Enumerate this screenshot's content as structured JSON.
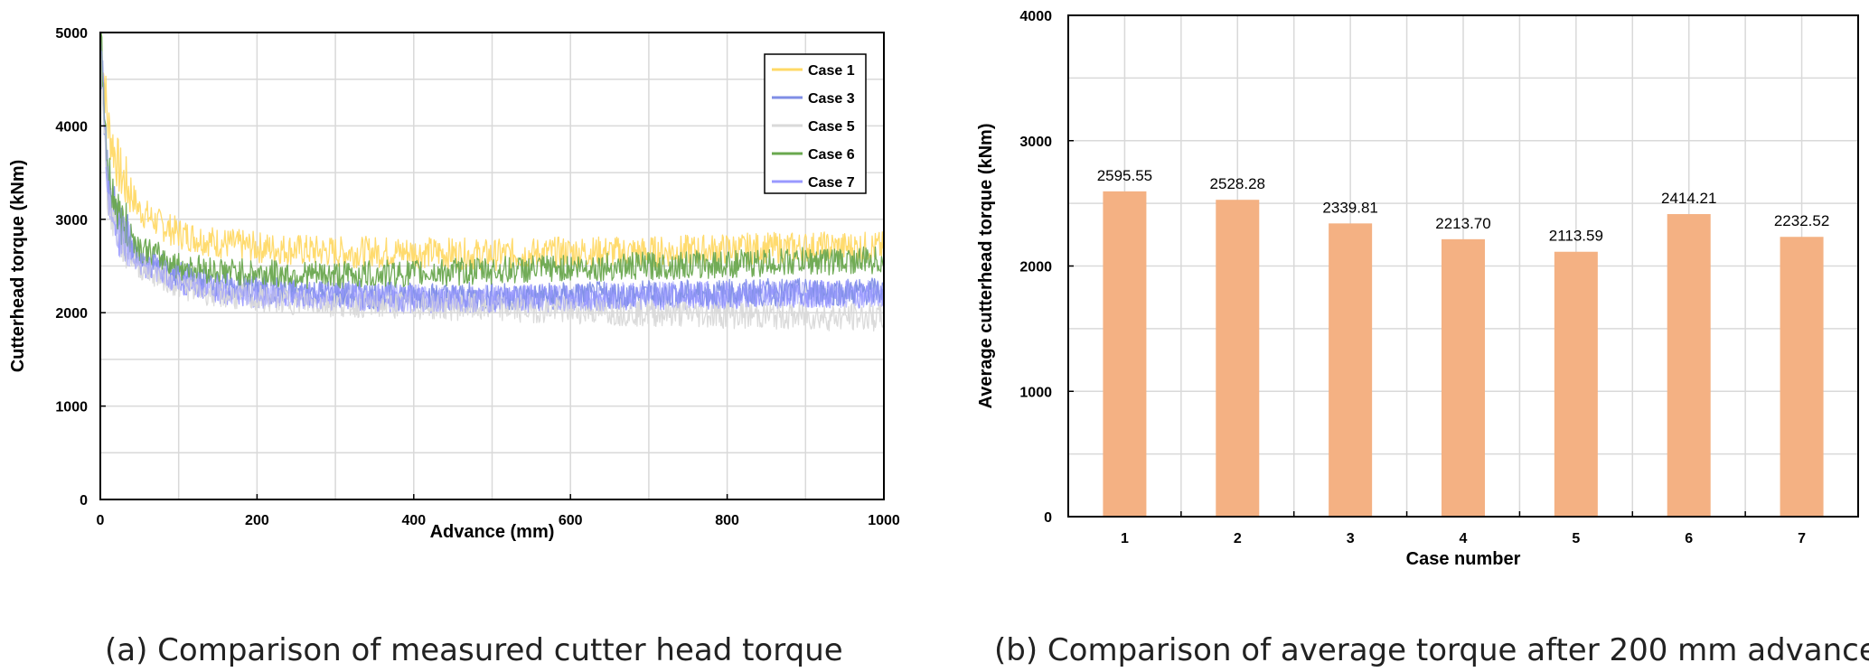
{
  "chart_data": [
    {
      "type": "line",
      "title": "",
      "caption": "(a) Comparison of measured cutter head torque",
      "xlabel": "Advance (mm)",
      "ylabel": "Cutterhead torque (kNm)",
      "xlim": [
        0,
        1000
      ],
      "ylim": [
        0,
        5000
      ],
      "xticks": [
        "0",
        "200",
        "400",
        "600",
        "800",
        "1000"
      ],
      "yticks": [
        "0",
        "1000",
        "2000",
        "3000",
        "4000",
        "5000"
      ],
      "grid": true,
      "legend_position": "top-right",
      "series": [
        {
          "name": "Case 1",
          "color": "#ffd966",
          "x": [
            0,
            10,
            25,
            50,
            75,
            100,
            150,
            200,
            300,
            400,
            500,
            600,
            700,
            800,
            900,
            1000
          ],
          "values": [
            5000,
            4000,
            3500,
            3100,
            2950,
            2850,
            2750,
            2700,
            2650,
            2650,
            2620,
            2650,
            2650,
            2680,
            2700,
            2700
          ]
        },
        {
          "name": "Case 3",
          "color": "#7f8ee6",
          "x": [
            0,
            10,
            25,
            50,
            75,
            100,
            150,
            200,
            300,
            400,
            500,
            600,
            700,
            800,
            900,
            1000
          ],
          "values": [
            5000,
            3300,
            2900,
            2600,
            2500,
            2400,
            2300,
            2250,
            2200,
            2180,
            2170,
            2180,
            2200,
            2210,
            2220,
            2230
          ]
        },
        {
          "name": "Case 5",
          "color": "#d9d9d9",
          "x": [
            0,
            10,
            25,
            50,
            75,
            100,
            150,
            200,
            300,
            400,
            500,
            600,
            700,
            800,
            900,
            1000
          ],
          "values": [
            5000,
            3200,
            2800,
            2500,
            2400,
            2300,
            2200,
            2150,
            2100,
            2080,
            2050,
            2030,
            2000,
            1980,
            1960,
            1950
          ]
        },
        {
          "name": "Case 6",
          "color": "#6aa84f",
          "x": [
            0,
            10,
            25,
            50,
            75,
            100,
            150,
            200,
            300,
            400,
            500,
            600,
            700,
            800,
            900,
            1000
          ],
          "values": [
            5000,
            3500,
            3000,
            2700,
            2600,
            2500,
            2450,
            2420,
            2400,
            2420,
            2450,
            2480,
            2500,
            2520,
            2550,
            2560
          ]
        },
        {
          "name": "Case 7",
          "color": "#9999ff",
          "x": [
            0,
            10,
            25,
            50,
            75,
            100,
            150,
            200,
            300,
            400,
            500,
            600,
            700,
            800,
            900,
            1000
          ],
          "values": [
            5000,
            3300,
            2850,
            2550,
            2450,
            2350,
            2250,
            2200,
            2170,
            2150,
            2150,
            2160,
            2180,
            2190,
            2200,
            2200
          ]
        }
      ]
    },
    {
      "type": "bar",
      "title": "",
      "caption": "(b) Comparison of average torque after 200 mm advance",
      "xlabel": "Case number",
      "ylabel": "Average cutterhead torque (kNm)",
      "ylim": [
        0,
        4000
      ],
      "yticks": [
        "0",
        "1000",
        "2000",
        "3000",
        "4000"
      ],
      "grid": true,
      "bar_color": "#f4b183",
      "categories": [
        "1",
        "2",
        "3",
        "4",
        "5",
        "6",
        "7"
      ],
      "values": [
        2595.55,
        2528.28,
        2339.81,
        2213.7,
        2113.59,
        2414.21,
        2232.52
      ],
      "value_labels": [
        "2595.55",
        "2528.28",
        "2339.81",
        "2213.70",
        "2113.59",
        "2414.21",
        "2232.52"
      ]
    }
  ]
}
